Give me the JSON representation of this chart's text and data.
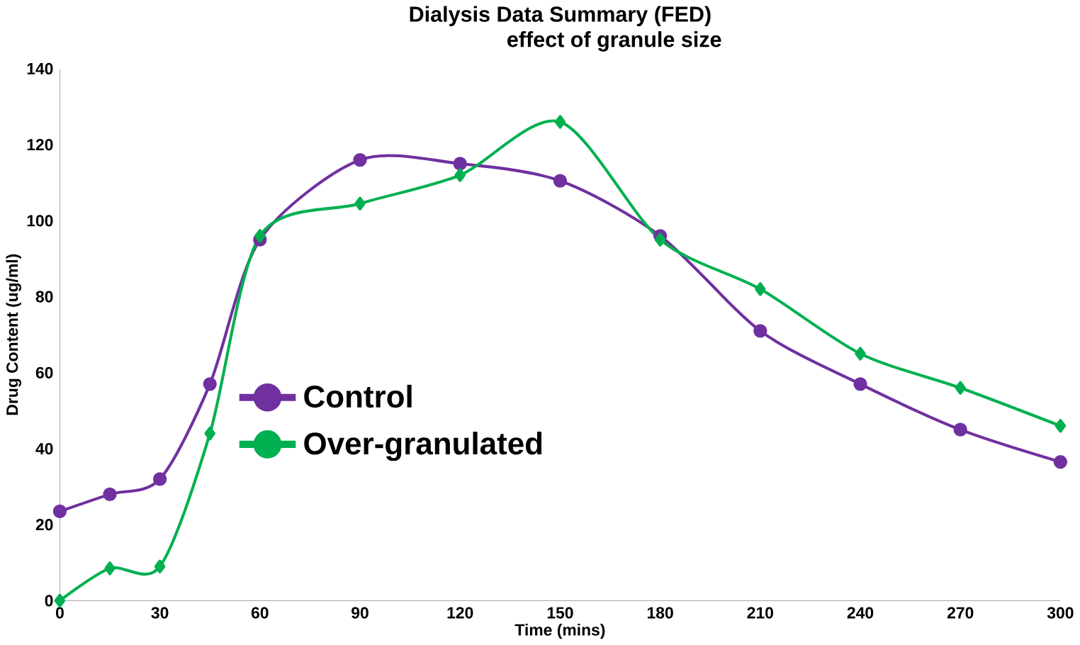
{
  "chart_data": {
    "type": "line",
    "title": "Dialysis Data Summary (FED)",
    "subtitle": "effect of granule size",
    "xlabel": "Time (mins)",
    "ylabel": "Drug Content (ug/ml)",
    "x": [
      0,
      15,
      30,
      45,
      60,
      90,
      120,
      150,
      180,
      210,
      240,
      270,
      300
    ],
    "series": [
      {
        "name": "Control",
        "color": "#7030a0",
        "marker": "circle",
        "values": [
          23.5,
          28,
          32,
          57,
          95,
          116,
          115,
          110.5,
          96,
          71,
          57,
          45,
          36.5
        ]
      },
      {
        "name": "Over-granulated",
        "color": "#00b050",
        "marker": "diamond",
        "values": [
          0,
          8.5,
          9,
          44,
          96,
          104.5,
          112,
          126,
          95,
          82,
          65,
          56,
          46
        ]
      }
    ],
    "xlim": [
      0,
      300
    ],
    "xticks": [
      0,
      30,
      60,
      90,
      120,
      150,
      180,
      210,
      240,
      270,
      300
    ],
    "ylim": [
      0,
      140
    ],
    "yticks": [
      0,
      20,
      40,
      60,
      80,
      100,
      120,
      140
    ],
    "legend": "left",
    "grid": false,
    "line_style": "solid"
  }
}
